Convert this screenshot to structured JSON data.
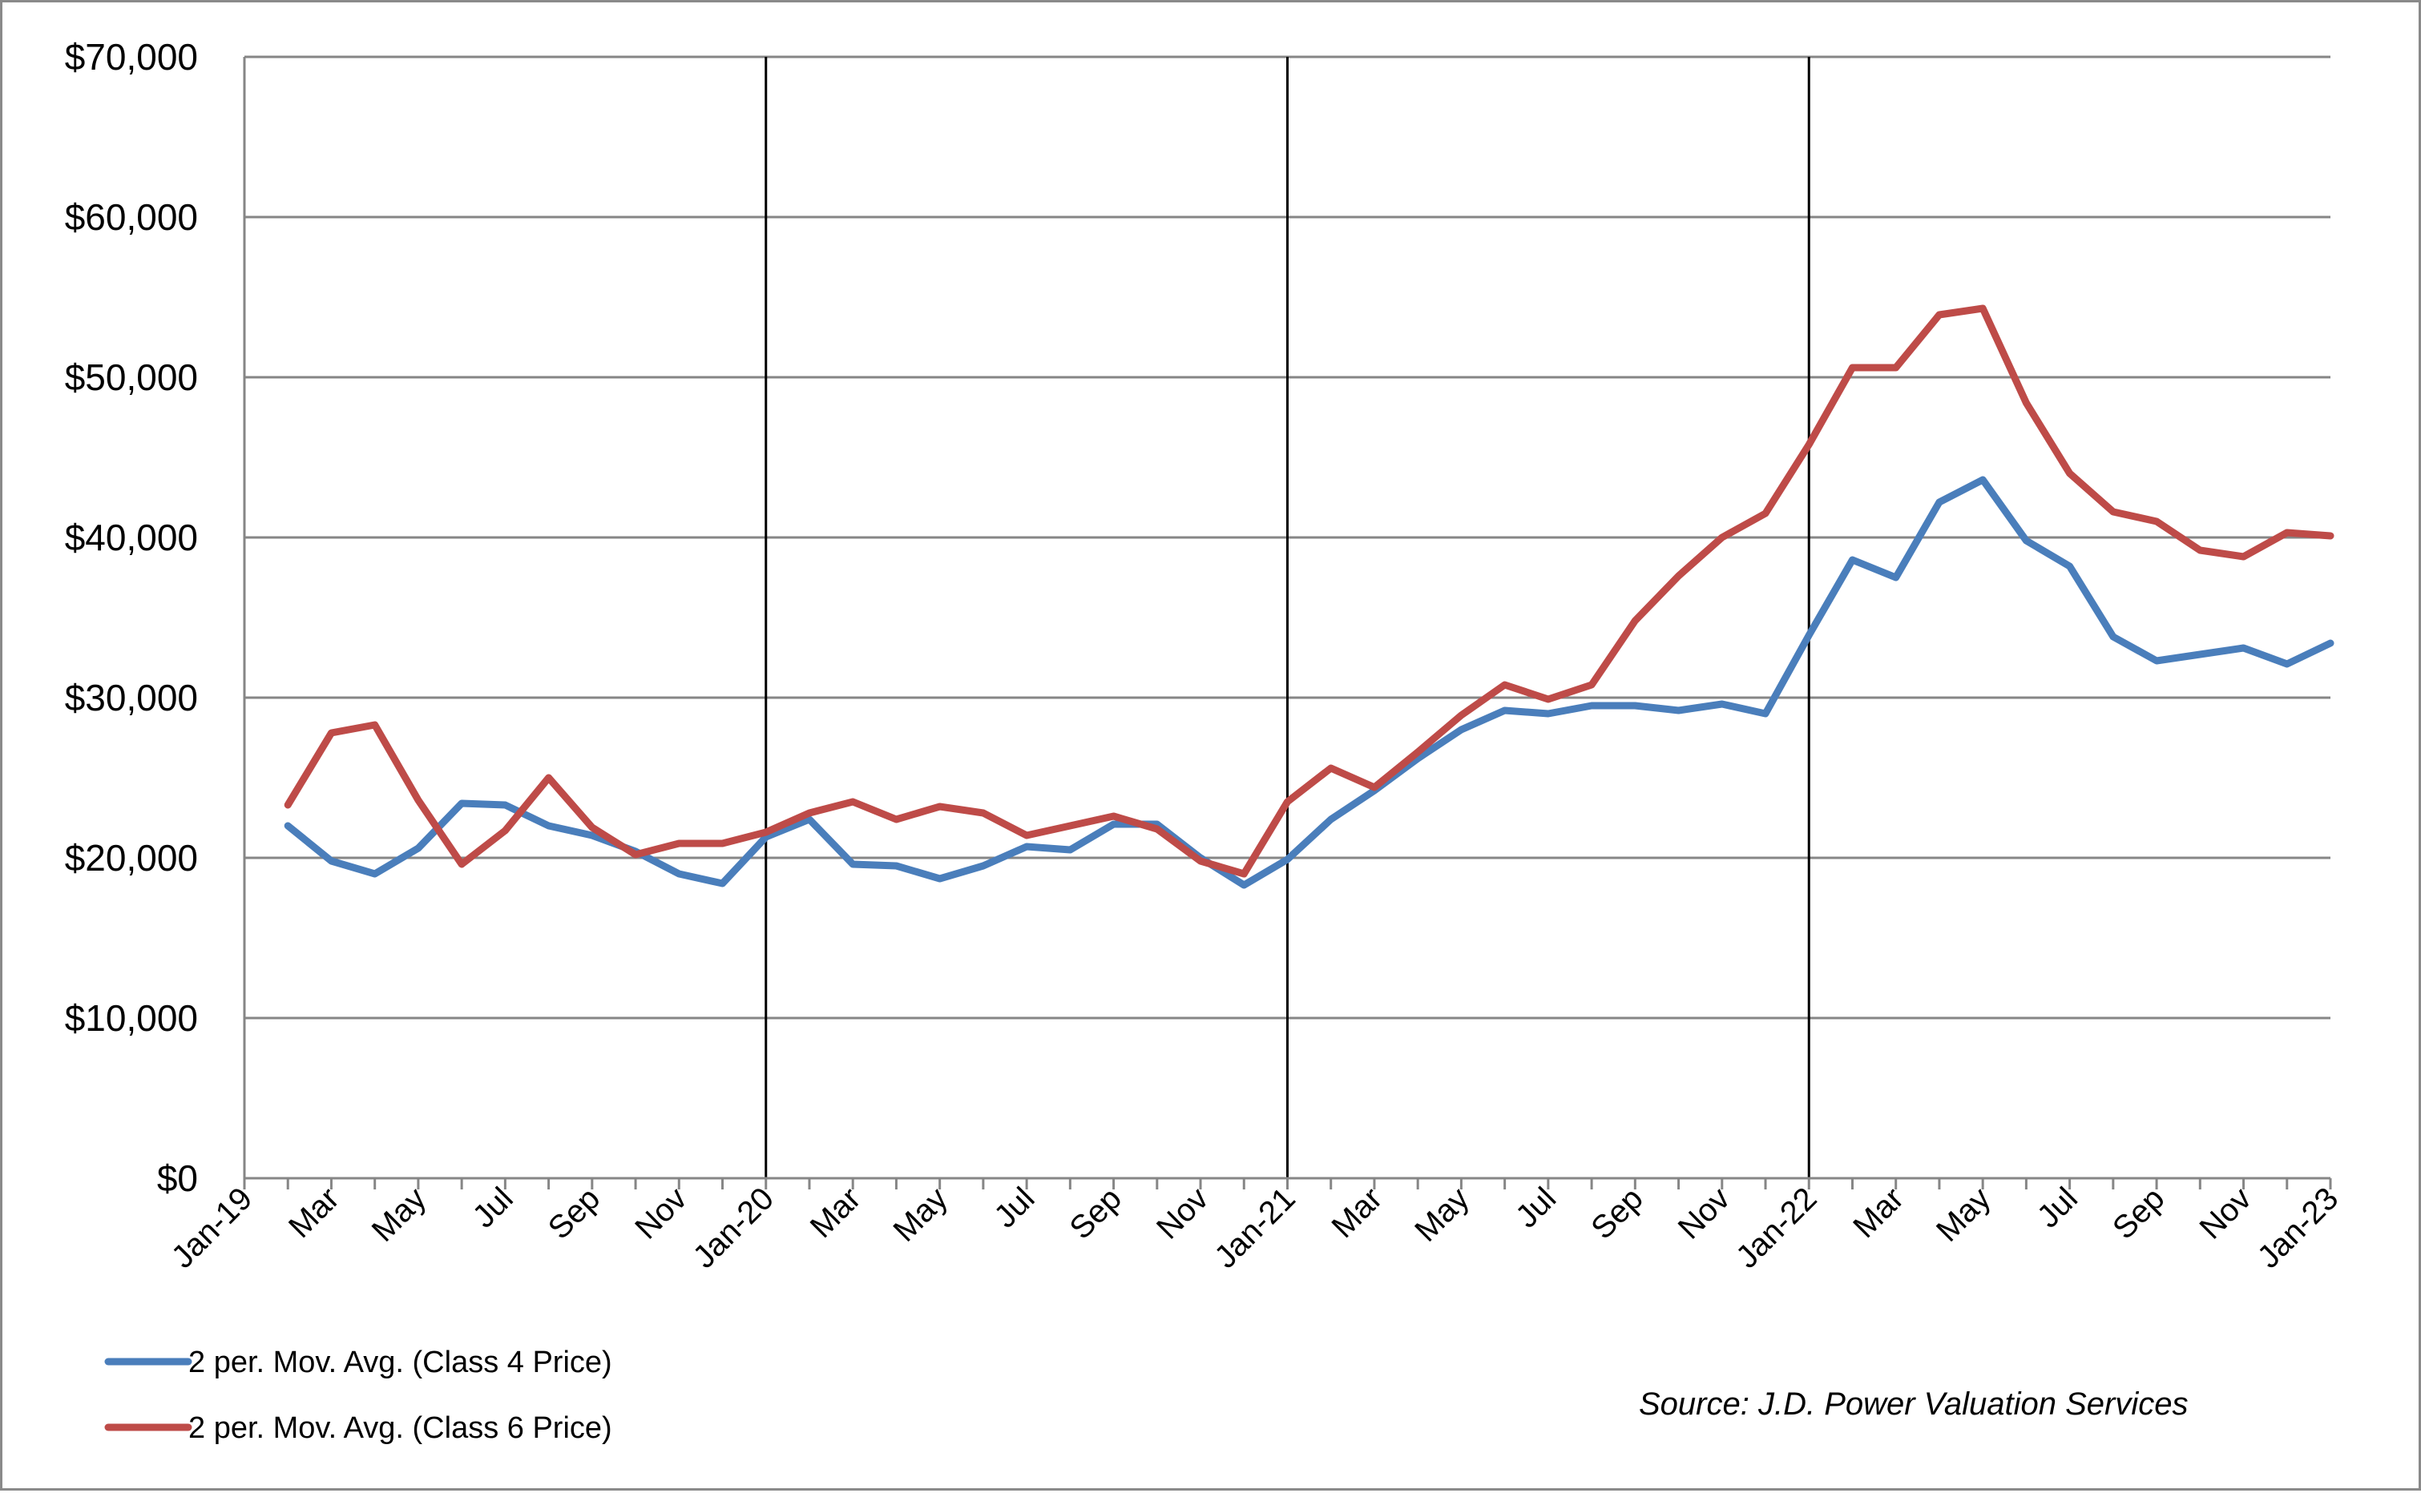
{
  "chart_data": {
    "type": "line",
    "title": "",
    "xlabel": "",
    "ylabel": "",
    "ylim": [
      0,
      70000
    ],
    "y_ticks": [
      "$0",
      "$10,000",
      "$20,000",
      "$30,000",
      "$40,000",
      "$50,000",
      "$60,000",
      "$70,000"
    ],
    "x_ticks": [
      "Jan-19",
      "Mar",
      "May",
      "Jul",
      "Sep",
      "Nov",
      "Jan-20",
      "Mar",
      "May",
      "Jul",
      "Sep",
      "Nov",
      "Jan-21",
      "Mar",
      "May",
      "Jul",
      "Sep",
      "Nov",
      "Jan-22",
      "Mar",
      "May",
      "Jul",
      "Sep",
      "Nov",
      "Jan-23"
    ],
    "x": [
      "Feb-19",
      "Mar-19",
      "Apr-19",
      "May-19",
      "Jun-19",
      "Jul-19",
      "Aug-19",
      "Sep-19",
      "Oct-19",
      "Nov-19",
      "Dec-19",
      "Jan-20",
      "Feb-20",
      "Mar-20",
      "Apr-20",
      "May-20",
      "Jun-20",
      "Jul-20",
      "Aug-20",
      "Sep-20",
      "Oct-20",
      "Nov-20",
      "Dec-20",
      "Jan-21",
      "Feb-21",
      "Mar-21",
      "Apr-21",
      "May-21",
      "Jun-21",
      "Jul-21",
      "Aug-21",
      "Sep-21",
      "Oct-21",
      "Nov-21",
      "Dec-21",
      "Jan-22",
      "Feb-22",
      "Mar-22",
      "Apr-22",
      "May-22",
      "Jun-22",
      "Jul-22",
      "Aug-22",
      "Sep-22",
      "Oct-22",
      "Nov-22",
      "Dec-22",
      "Jan-23"
    ],
    "year_dividers": [
      "Jan-20",
      "Jan-21",
      "Jan-22"
    ],
    "grid": true,
    "legend_position": "bottom-left",
    "series": [
      {
        "name": "2 per. Mov. Avg. (Class 4 Price)",
        "color": "#4a7ebb",
        "values": [
          22000,
          19800,
          19000,
          20600,
          23400,
          23300,
          22000,
          21400,
          20400,
          19000,
          18400,
          21300,
          22400,
          19600,
          19500,
          18700,
          19500,
          20700,
          20500,
          22100,
          22100,
          20000,
          18300,
          19900,
          22400,
          24200,
          26200,
          28000,
          29200,
          29000,
          29500,
          29500,
          29200,
          29600,
          29000,
          33900,
          38600,
          37500,
          42200,
          43600,
          39800,
          38200,
          33800,
          32300,
          32700,
          33100,
          32100,
          33400
        ]
      },
      {
        "name": "2 per. Mov. Avg. (Class 6 Price)",
        "color": "#be4b48",
        "values": [
          23300,
          27800,
          28300,
          23600,
          19600,
          21700,
          25000,
          21900,
          20200,
          20900,
          20900,
          21600,
          22800,
          23500,
          22400,
          23200,
          22800,
          21400,
          22000,
          22600,
          21800,
          19800,
          19000,
          23500,
          25600,
          24400,
          26600,
          28900,
          30800,
          29900,
          30800,
          34800,
          37600,
          40000,
          41500,
          45800,
          50600,
          50600,
          53900,
          54300,
          48400,
          44000,
          41600,
          41000,
          39200,
          38800,
          40300,
          40100
        ]
      }
    ]
  },
  "source": "Source: J.D. Power Valuation Services"
}
